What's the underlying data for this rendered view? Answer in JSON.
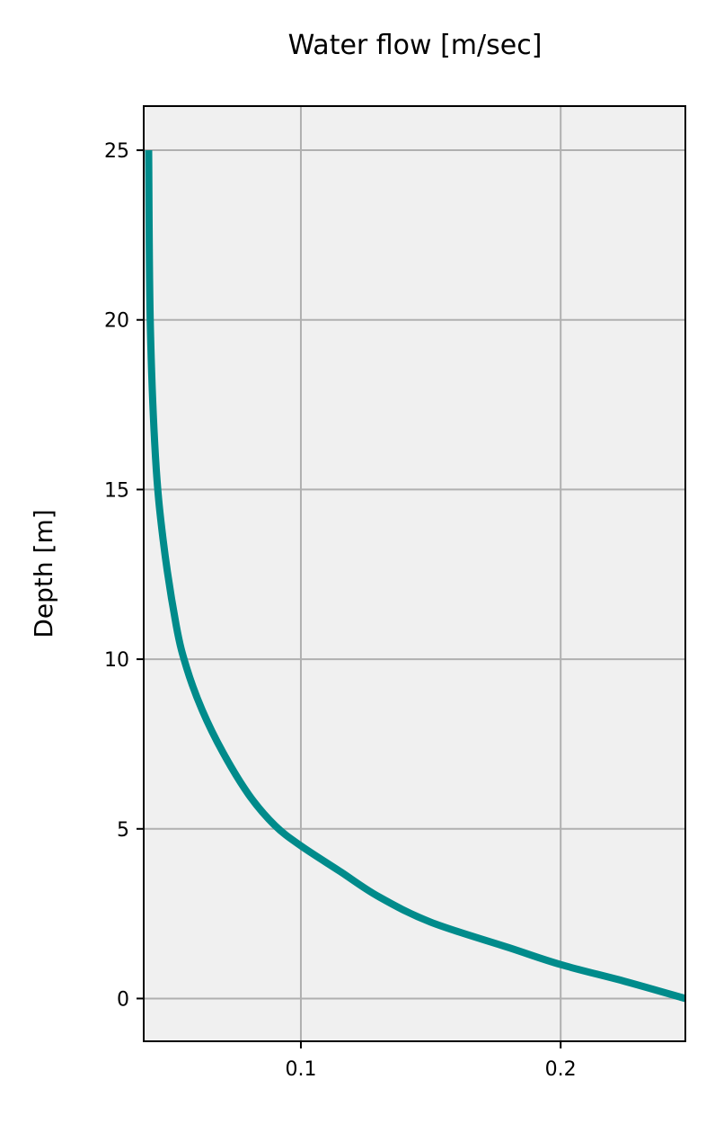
{
  "chart_data": {
    "type": "line",
    "title": "Water flow [m/sec]",
    "xlabel": "",
    "ylabel": "Depth [m]",
    "xlim": [
      0.0395,
      0.248
    ],
    "ylim": [
      -1.26,
      26.3
    ],
    "xticks": [
      {
        "value": 0.1,
        "label": "0.1"
      },
      {
        "value": 0.2,
        "label": "0.2"
      }
    ],
    "yticks": [
      {
        "value": 0,
        "label": "0"
      },
      {
        "value": 5,
        "label": "5"
      },
      {
        "value": 10,
        "label": "10"
      },
      {
        "value": 15,
        "label": "15"
      },
      {
        "value": 20,
        "label": "20"
      },
      {
        "value": 25,
        "label": "25"
      }
    ],
    "grid": true,
    "series": [
      {
        "color": "#008b8b",
        "points": [
          {
            "x": 0.0414,
            "y": 25.0
          },
          {
            "x": 0.042,
            "y": 20.0
          },
          {
            "x": 0.044,
            "y": 16.0
          },
          {
            "x": 0.047,
            "y": 13.5
          },
          {
            "x": 0.052,
            "y": 11.0
          },
          {
            "x": 0.056,
            "y": 9.75
          },
          {
            "x": 0.062,
            "y": 8.5
          },
          {
            "x": 0.07,
            "y": 7.25
          },
          {
            "x": 0.08,
            "y": 6.0
          },
          {
            "x": 0.09,
            "y": 5.1
          },
          {
            "x": 0.1,
            "y": 4.5
          },
          {
            "x": 0.115,
            "y": 3.75
          },
          {
            "x": 0.13,
            "y": 3.0
          },
          {
            "x": 0.15,
            "y": 2.25
          },
          {
            "x": 0.18,
            "y": 1.5
          },
          {
            "x": 0.2,
            "y": 1.0
          },
          {
            "x": 0.225,
            "y": 0.5
          },
          {
            "x": 0.248,
            "y": 0.0
          }
        ]
      }
    ],
    "colors": {
      "plot_background": "#f0f0f0",
      "grid": "#b0b0b0",
      "line": "#008b8b"
    }
  }
}
